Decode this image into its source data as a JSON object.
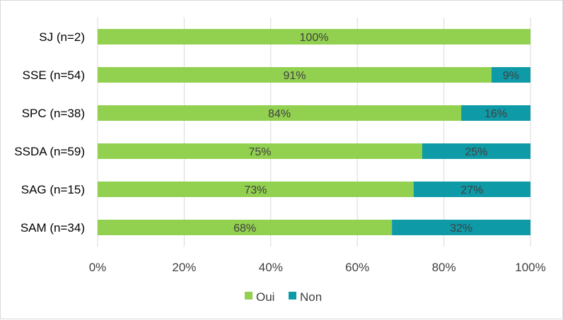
{
  "chart_data": {
    "type": "bar",
    "orientation": "horizontal",
    "stacked": true,
    "title": "",
    "xlabel": "",
    "ylabel": "",
    "categories": [
      "SJ (n=2)",
      "SSE (n=54)",
      "SPC (n=38)",
      "SSDA (n=59)",
      "SAG (n=15)",
      "SAM (n=34)"
    ],
    "series": [
      {
        "name": "Oui",
        "color": "#92d050",
        "values": [
          100,
          91,
          84,
          75,
          73,
          68
        ],
        "labels": [
          "100%",
          "91%",
          "84%",
          "75%",
          "73%",
          "68%"
        ]
      },
      {
        "name": "Non",
        "color": "#0e9aa7",
        "values": [
          0,
          9,
          16,
          25,
          27,
          32
        ],
        "labels": [
          "",
          "9%",
          "16%",
          "25%",
          "27%",
          "32%"
        ]
      }
    ],
    "xlim": [
      0,
      100
    ],
    "x_ticks": [
      "0%",
      "20%",
      "40%",
      "60%",
      "80%",
      "100%"
    ],
    "gridlines": true,
    "legend_position": "bottom"
  }
}
